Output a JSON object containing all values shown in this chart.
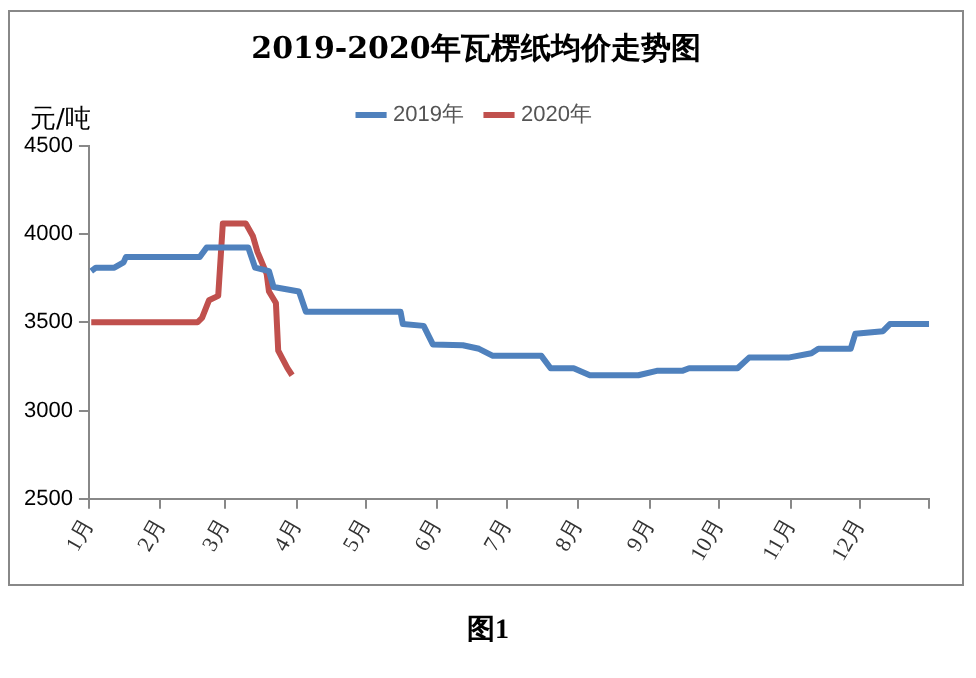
{
  "chart_data": {
    "type": "line",
    "title": "2019-2020年瓦楞纸均价走势图",
    "ylabel": "元/吨",
    "legend": "top",
    "grid": false,
    "marker": "none",
    "line_style": "solid",
    "xlim": [
      "--01-01",
      "--12-31"
    ],
    "xticks": [
      {
        "value": "--01-01",
        "label": "1月"
      },
      {
        "value": "--02-01",
        "label": "2月"
      },
      {
        "value": "--03-01",
        "label": "3月"
      },
      {
        "value": "--04-01",
        "label": "4月"
      },
      {
        "value": "--05-01",
        "label": "5月"
      },
      {
        "value": "--06-01",
        "label": "6月"
      },
      {
        "value": "--07-01",
        "label": "7月"
      },
      {
        "value": "--08-01",
        "label": "8月"
      },
      {
        "value": "--09-01",
        "label": "9月"
      },
      {
        "value": "--10-01",
        "label": "10月"
      },
      {
        "value": "--11-01",
        "label": "11月"
      },
      {
        "value": "--12-01",
        "label": "12月"
      },
      {
        "value": "--12-31",
        "label": null
      }
    ],
    "ylim": [
      2500,
      4500
    ],
    "yticks": [
      2500,
      3000,
      3500,
      4000,
      4500
    ],
    "series": [
      {
        "name": "2019年",
        "color": "#4f81bd",
        "x": [
          "--01-02",
          "--01-04",
          "--01-12",
          "--01-16",
          "--01-17",
          "--02-18",
          "--02-21",
          "--03-11",
          "--03-14",
          "--03-20",
          "--03-22",
          "--04-02",
          "--04-05",
          "--05-16",
          "--05-17",
          "--05-26",
          "--05-30",
          "--06-12",
          "--06-19",
          "--06-25",
          "--07-16",
          "--07-20",
          "--07-30",
          "--08-06",
          "--08-27",
          "--09-04",
          "--09-15",
          "--09-18",
          "--10-09",
          "--10-14",
          "--10-31",
          "--11-10",
          "--11-13",
          "--11-27",
          "--11-29",
          "--12-11",
          "--12-14",
          "--12-31"
        ],
        "values": [
          3790,
          3810,
          3810,
          3840,
          3870,
          3870,
          3925,
          3925,
          3810,
          3790,
          3700,
          3675,
          3560,
          3560,
          3490,
          3480,
          3375,
          3370,
          3350,
          3310,
          3310,
          3240,
          3240,
          3200,
          3200,
          3225,
          3225,
          3240,
          3240,
          3300,
          3300,
          3325,
          3350,
          3350,
          3435,
          3450,
          3490,
          3490
        ]
      },
      {
        "name": "2020年",
        "color": "#c0504d",
        "x": [
          "--01-02",
          "--02-17",
          "--02-19",
          "--02-22",
          "--02-26",
          "--02-28",
          "--03-10",
          "--03-13",
          "--03-15",
          "--03-19",
          "--03-20",
          "--03-23",
          "--03-24",
          "--03-28",
          "--03-30"
        ],
        "values": [
          3500,
          3500,
          3525,
          3625,
          3650,
          4060,
          4060,
          3990,
          3900,
          3775,
          3675,
          3610,
          3340,
          3240,
          3200
        ]
      }
    ],
    "annotations": [
      "图1"
    ]
  }
}
